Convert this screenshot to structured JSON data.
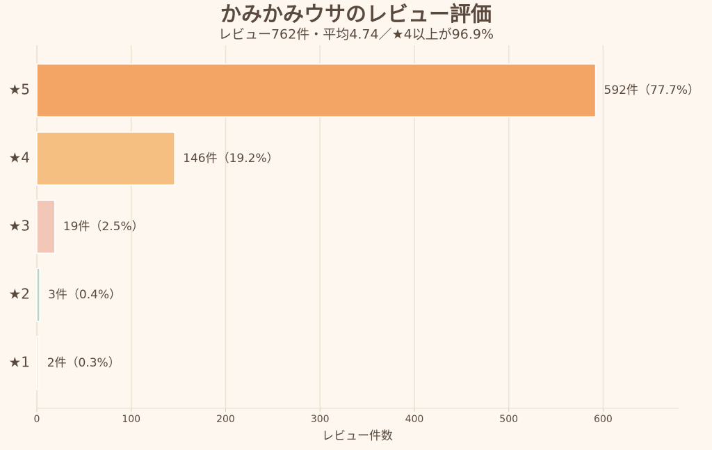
{
  "chart_data": {
    "type": "barh",
    "title": "かみかみウサのレビュー評価",
    "subtitle": "レビュー762件・平均4.74／★4以上が96.9%",
    "categories": [
      "★5",
      "★4",
      "★3",
      "★2",
      "★1"
    ],
    "values": [
      592,
      146,
      19,
      3,
      2
    ],
    "value_labels": [
      "592件（77.7%）",
      "146件（19.2%）",
      "19件（2.5%）",
      "3件（0.4%）",
      "2件（0.3%）"
    ],
    "colors": [
      "#f2a564",
      "#f5bf82",
      "#f2c7b8",
      "#b8d5c4",
      "#f7e1d6"
    ],
    "xlabel": "レビュー件数",
    "xlim": [
      0,
      680
    ],
    "xticks": [
      0,
      100,
      200,
      300,
      400,
      500,
      600
    ],
    "grid": true
  }
}
